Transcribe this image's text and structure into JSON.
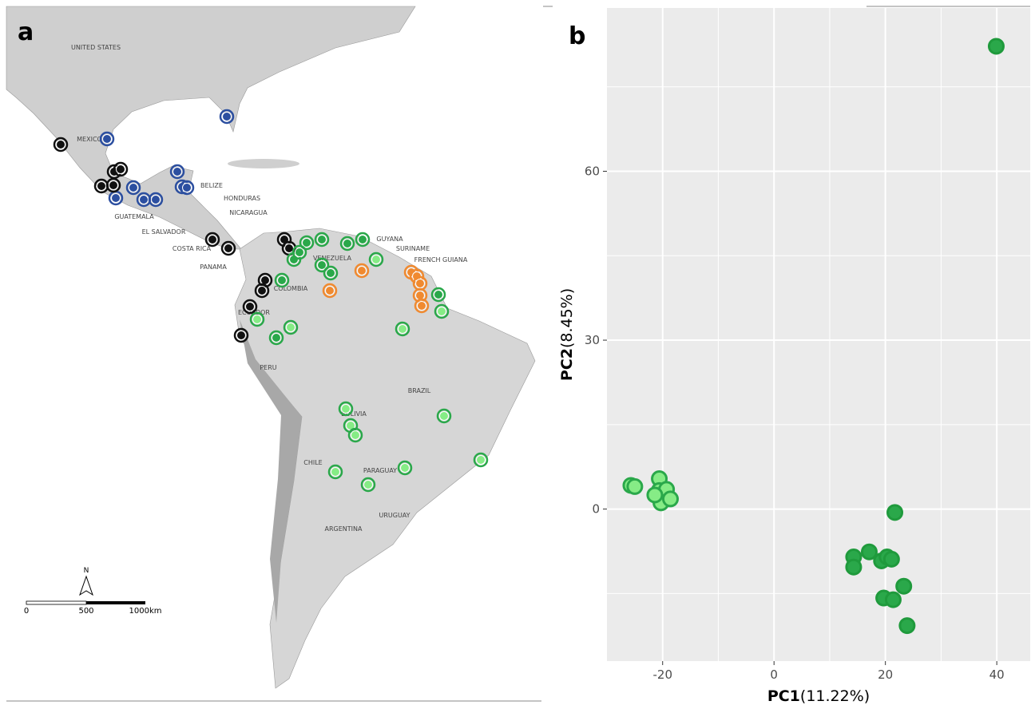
{
  "map": {
    "panel_label": "a",
    "countries": [
      "UNITED STATES",
      "MEXICO",
      "BELIZE",
      "HONDURAS",
      "NICARAGUA",
      "GUATEMALA",
      "EL SALVADOR",
      "COSTA RICA",
      "PANAMA",
      "VENEZUELA",
      "GUYANA",
      "SURINAME",
      "FRENCH GUIANA",
      "COLOMBIA",
      "ECUADOR",
      "PERU",
      "BRAZIL",
      "BOLIVIA",
      "CHILE",
      "PARAGUAY",
      "URUGUAY",
      "ARGENTINA"
    ],
    "north": "N",
    "scale_labels": [
      "0",
      "500",
      "1000km"
    ]
  },
  "chart_data": {
    "type": "scatter",
    "panel_label": "b",
    "xlabel": {
      "bold": "PC1",
      "rest": "(11.22%)"
    },
    "ylabel": {
      "bold": "PC2",
      "rest": "(8.45%)"
    },
    "xlim": [
      -30,
      46
    ],
    "ylim": [
      -27,
      89
    ],
    "xticks": [
      -20,
      0,
      20,
      40
    ],
    "yticks": [
      0,
      30,
      60
    ],
    "grid": true,
    "series": [
      {
        "color": "#2aa84a",
        "edgecolor": "#1f9a3c",
        "x": [
          39.9,
          21.7,
          14.3,
          14.3,
          17.1,
          19.3,
          20.3,
          21.1,
          23.3,
          19.7,
          21.4,
          23.9
        ],
        "values": [
          82.2,
          -0.6,
          -8.5,
          -10.3,
          -7.6,
          -9.2,
          -8.5,
          -8.9,
          -13.7,
          -15.8,
          -16.1,
          -20.7
        ]
      },
      {
        "color": "#86ec86",
        "edgecolor": "#2aa84a",
        "x": [
          -25.7,
          -25,
          -20.6,
          -20.6,
          -19.3,
          -20.3,
          -18.6,
          -21.4
        ],
        "values": [
          4.2,
          4,
          5.4,
          3.3,
          3.5,
          1.1,
          1.8,
          2.5
        ]
      }
    ]
  }
}
